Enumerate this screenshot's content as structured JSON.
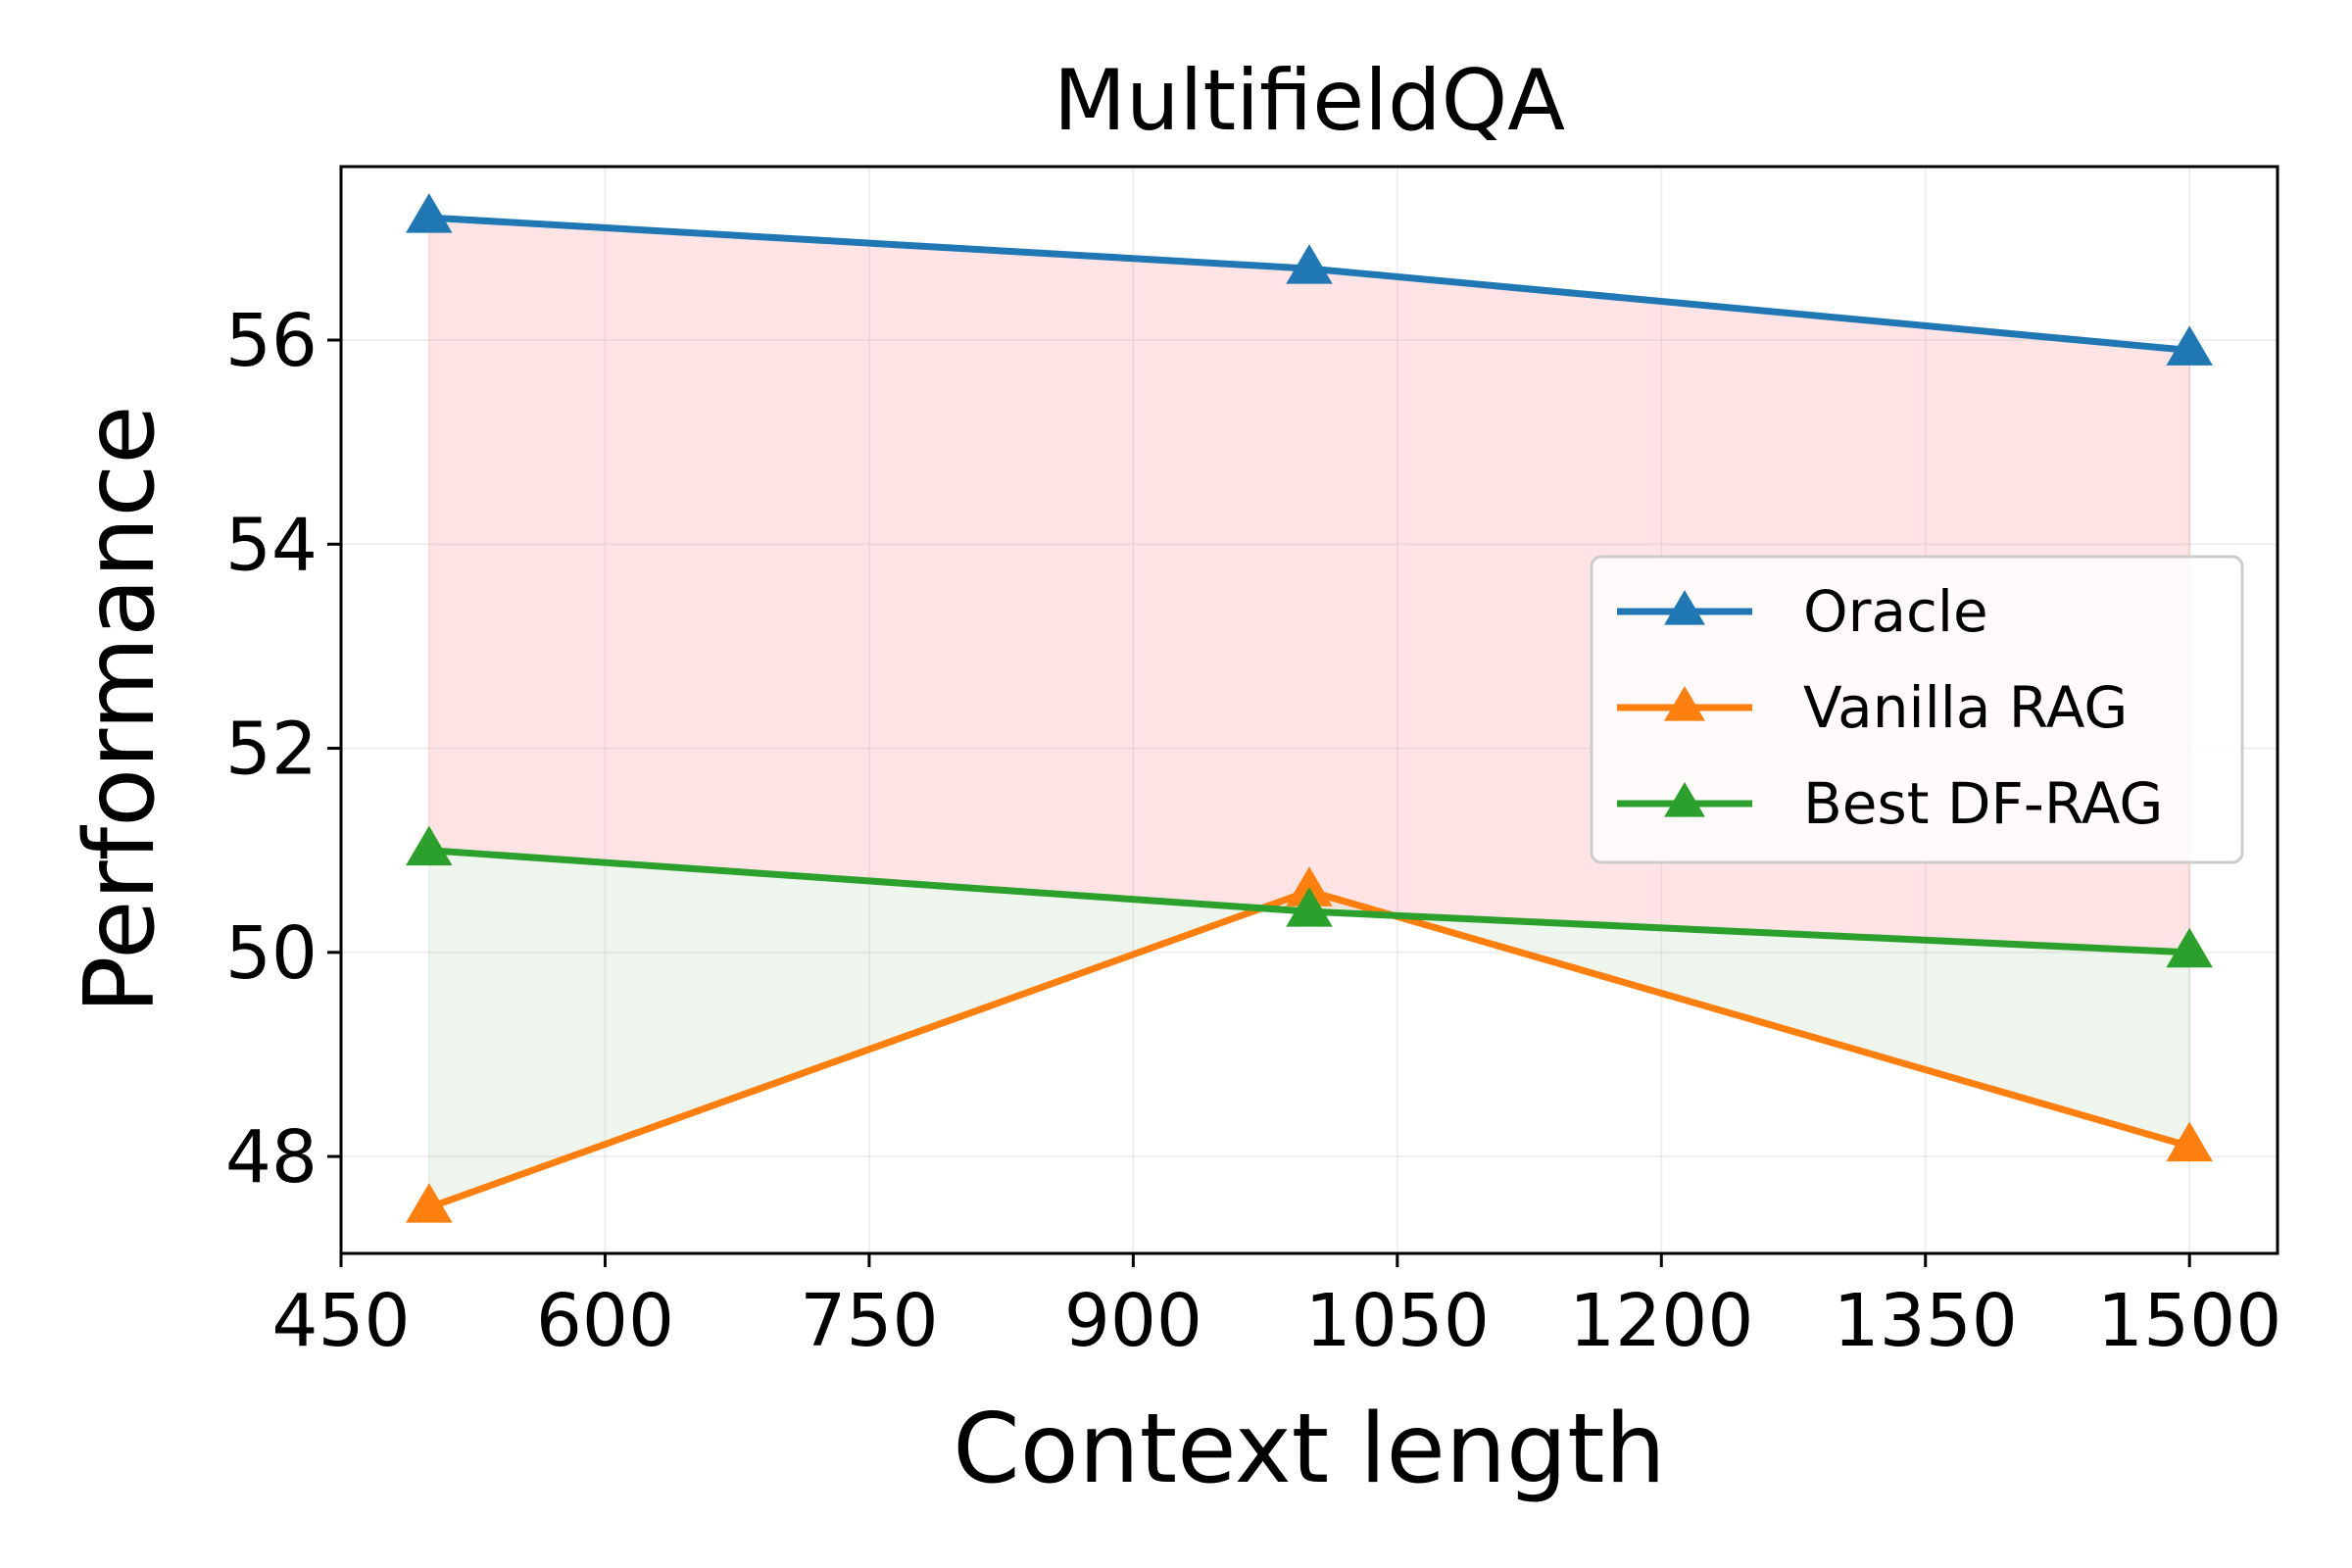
{
  "chart_data": {
    "type": "line",
    "title": "MultifieldQA",
    "xlabel": "Context length",
    "ylabel": "Performance",
    "x": [
      500,
      1000,
      1500
    ],
    "xlim": [
      450,
      1550
    ],
    "ylim": [
      47.05,
      57.7
    ],
    "xticks": [
      450,
      600,
      750,
      900,
      1050,
      1200,
      1350,
      1500
    ],
    "yticks": [
      48,
      50,
      52,
      54,
      56
    ],
    "grid": true,
    "legend_position": "center-right",
    "series": [
      {
        "name": "Oracle",
        "values": [
          57.2,
          56.7,
          55.9
        ],
        "color": "#1f77b4",
        "marker": "triangle-up-icon"
      },
      {
        "name": "Vanilla RAG",
        "values": [
          47.5,
          50.6,
          48.1
        ],
        "color": "#ff7f0e",
        "marker": "triangle-up-icon"
      },
      {
        "name": "Best DF-RAG",
        "values": [
          51.0,
          50.4,
          50.0
        ],
        "color": "#2ca02c",
        "marker": "triangle-up-icon"
      }
    ],
    "fills": [
      {
        "between": [
          "Oracle",
          "Best DF-RAG"
        ],
        "color": "#ffc0c5"
      },
      {
        "between": [
          "Best DF-RAG",
          "Vanilla RAG"
        ],
        "color": "#d8e9d4"
      }
    ]
  }
}
